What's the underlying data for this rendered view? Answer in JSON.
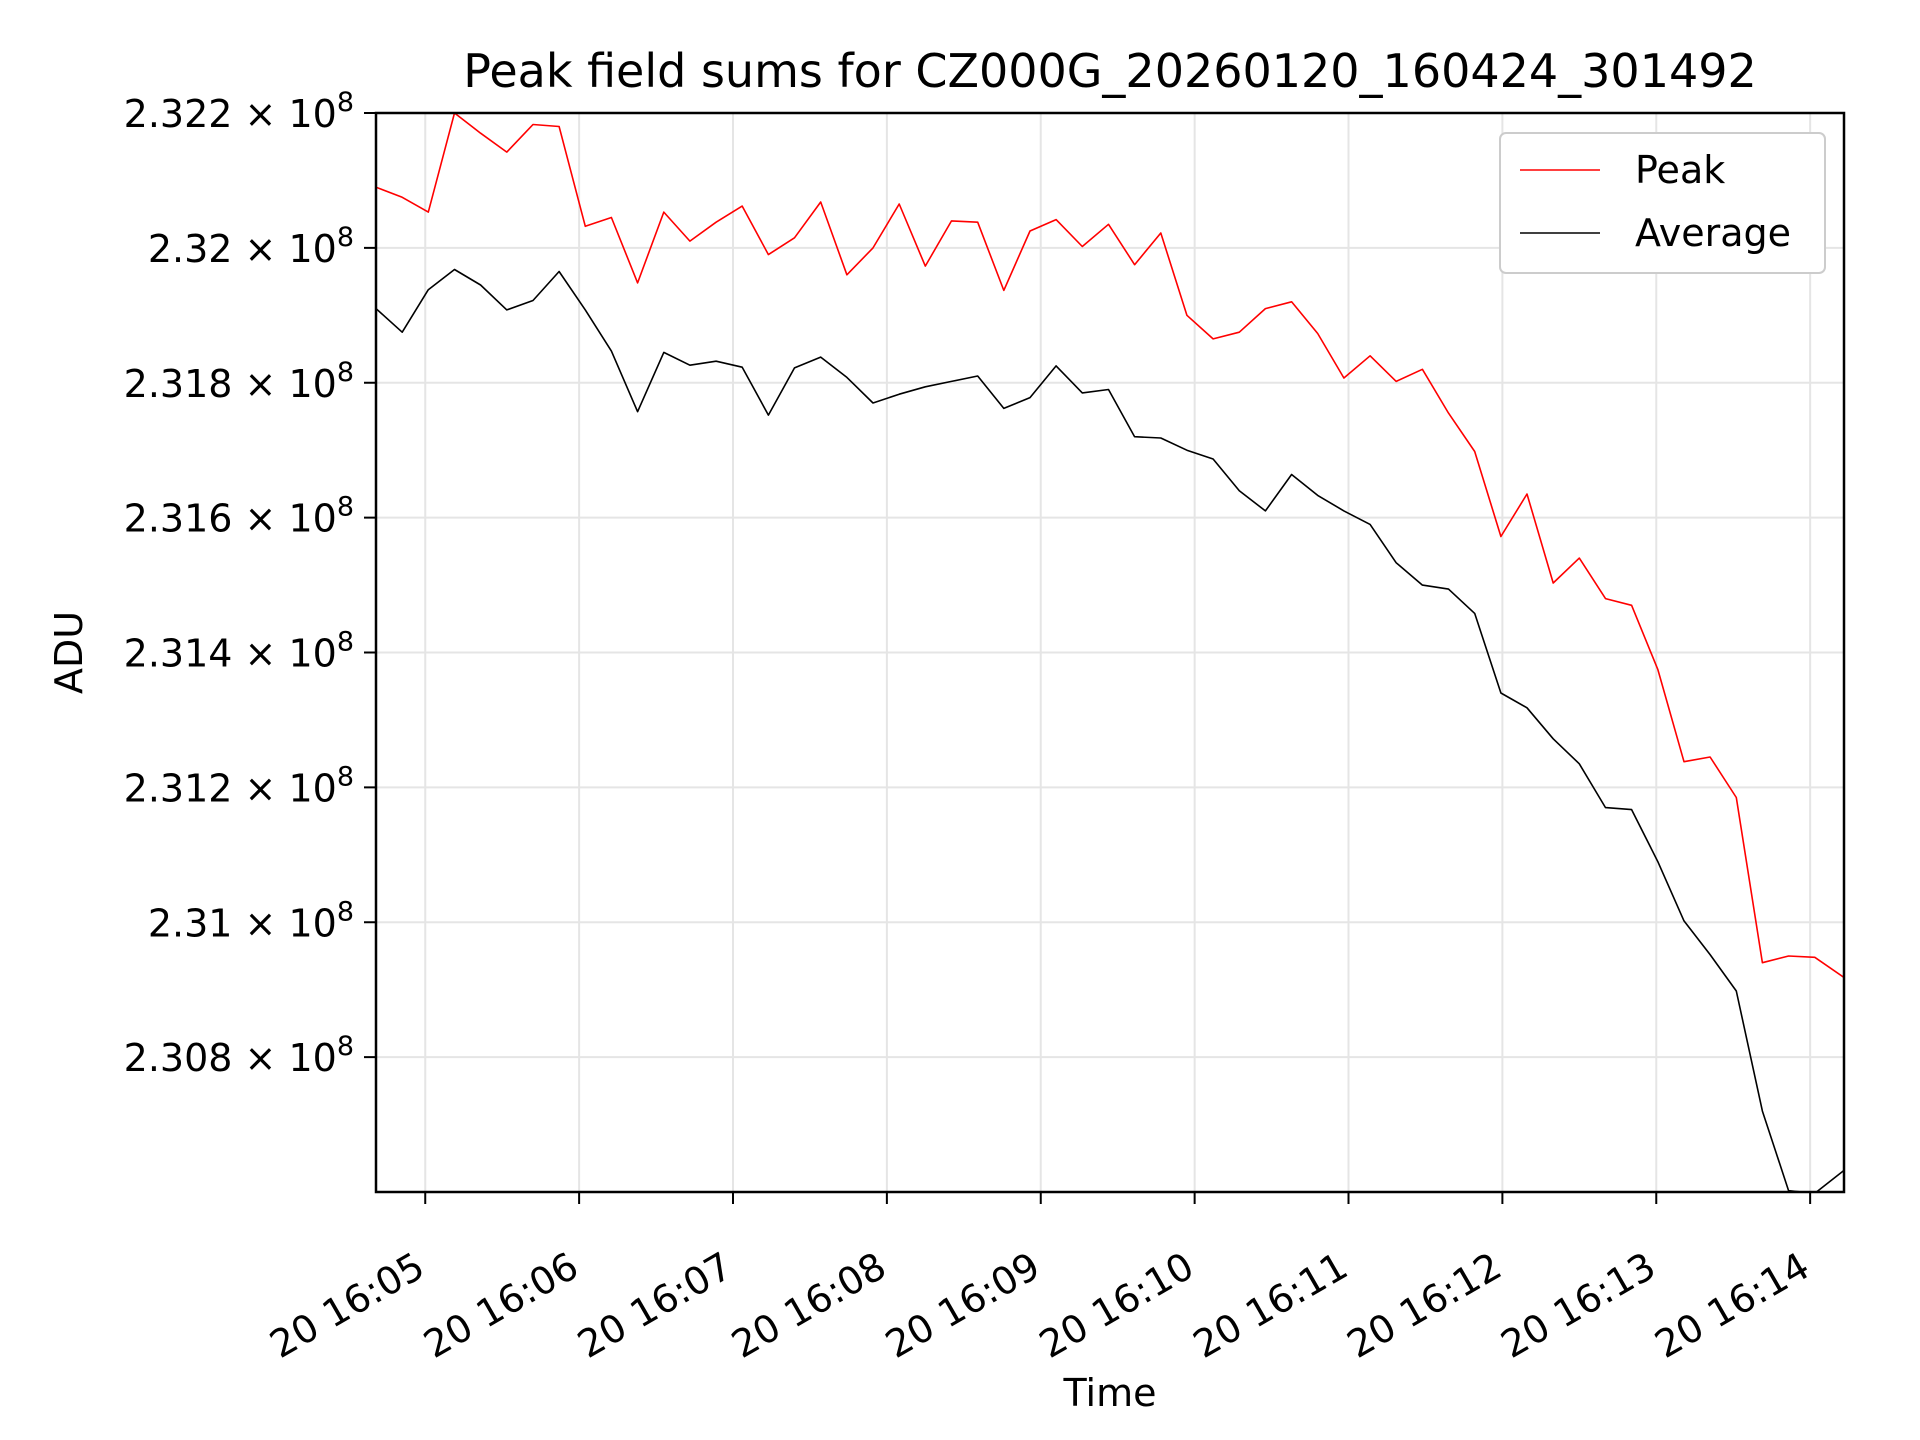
{
  "chart_data": {
    "type": "line",
    "title": "Peak field sums for CZ000G_20260120_160424_301492",
    "xlabel": "Time",
    "ylabel": "ADU",
    "grid": true,
    "legend_position": "top-right",
    "x_range_minutes": [
      4.68,
      14.22
    ],
    "ylim": [
      230.6,
      232.2
    ],
    "y_unit_note": "values in units of 1e6 ADU",
    "y_ticks": [
      {
        "value": 232.2,
        "mantissa": "2.322",
        "exp": "8"
      },
      {
        "value": 232.0,
        "mantissa": "2.32",
        "exp": "8"
      },
      {
        "value": 231.8,
        "mantissa": "2.318",
        "exp": "8"
      },
      {
        "value": 231.6,
        "mantissa": "2.316",
        "exp": "8"
      },
      {
        "value": 231.4,
        "mantissa": "2.314",
        "exp": "8"
      },
      {
        "value": 231.2,
        "mantissa": "2.312",
        "exp": "8"
      },
      {
        "value": 231.0,
        "mantissa": "2.31",
        "exp": "8"
      },
      {
        "value": 230.8,
        "mantissa": "2.308",
        "exp": "8"
      }
    ],
    "x_ticks": [
      {
        "minute": 5,
        "label": "20 16:05"
      },
      {
        "minute": 6,
        "label": "20 16:06"
      },
      {
        "minute": 7,
        "label": "20 16:07"
      },
      {
        "minute": 8,
        "label": "20 16:08"
      },
      {
        "minute": 9,
        "label": "20 16:09"
      },
      {
        "minute": 10,
        "label": "20 16:10"
      },
      {
        "minute": 11,
        "label": "20 16:11"
      },
      {
        "minute": 12,
        "label": "20 16:12"
      },
      {
        "minute": 13,
        "label": "20 16:13"
      },
      {
        "minute": 14,
        "label": "20 16:14"
      }
    ],
    "x": [
      4.68,
      4.85,
      5.02,
      5.19,
      5.36,
      5.53,
      5.7,
      5.87,
      6.04,
      6.21,
      6.38,
      6.55,
      6.72,
      6.89,
      7.06,
      7.23,
      7.4,
      7.57,
      7.74,
      7.91,
      8.08,
      8.25,
      8.42,
      8.59,
      8.76,
      8.93,
      9.1,
      9.27,
      9.44,
      9.61,
      9.78,
      9.95,
      10.12,
      10.29,
      10.46,
      10.63,
      10.8,
      10.97,
      11.14,
      11.31,
      11.48,
      11.65,
      11.82,
      11.99,
      12.16,
      12.33,
      12.5,
      12.67,
      12.84,
      13.01,
      13.18,
      13.35,
      13.52,
      13.69,
      13.86,
      14.03,
      14.22
    ],
    "series": [
      {
        "name": "Peak",
        "color": "#ff0000",
        "values": [
          232.09,
          232.075,
          232.053,
          232.2,
          232.17,
          232.142,
          232.183,
          232.18,
          232.032,
          232.045,
          231.948,
          232.053,
          232.01,
          232.038,
          232.062,
          231.99,
          232.015,
          232.068,
          231.96,
          232.0,
          232.065,
          231.973,
          232.04,
          232.038,
          231.937,
          232.025,
          232.042,
          232.002,
          232.035,
          231.975,
          232.022,
          231.9,
          231.865,
          231.875,
          231.91,
          231.92,
          231.873,
          231.807,
          231.84,
          231.802,
          231.82,
          231.755,
          231.698,
          231.572,
          231.635,
          231.503,
          231.54,
          231.48,
          231.47,
          231.375,
          231.238,
          231.245,
          231.185,
          230.94,
          230.95,
          230.948,
          230.918
        ]
      },
      {
        "name": "Average",
        "color": "#000000",
        "values": [
          231.91,
          231.875,
          231.938,
          231.968,
          231.945,
          231.908,
          231.922,
          231.965,
          231.908,
          231.847,
          231.757,
          231.845,
          231.826,
          231.832,
          231.823,
          231.752,
          231.822,
          231.838,
          231.808,
          231.77,
          231.783,
          231.794,
          231.802,
          231.81,
          231.762,
          231.778,
          231.825,
          231.785,
          231.79,
          231.72,
          231.718,
          231.7,
          231.687,
          231.64,
          231.61,
          231.664,
          231.633,
          231.61,
          231.59,
          231.533,
          231.5,
          231.494,
          231.458,
          231.34,
          231.318,
          231.272,
          231.235,
          231.17,
          231.167,
          231.09,
          231.002,
          230.952,
          230.898,
          230.72,
          230.602,
          230.598,
          230.632
        ]
      }
    ]
  }
}
